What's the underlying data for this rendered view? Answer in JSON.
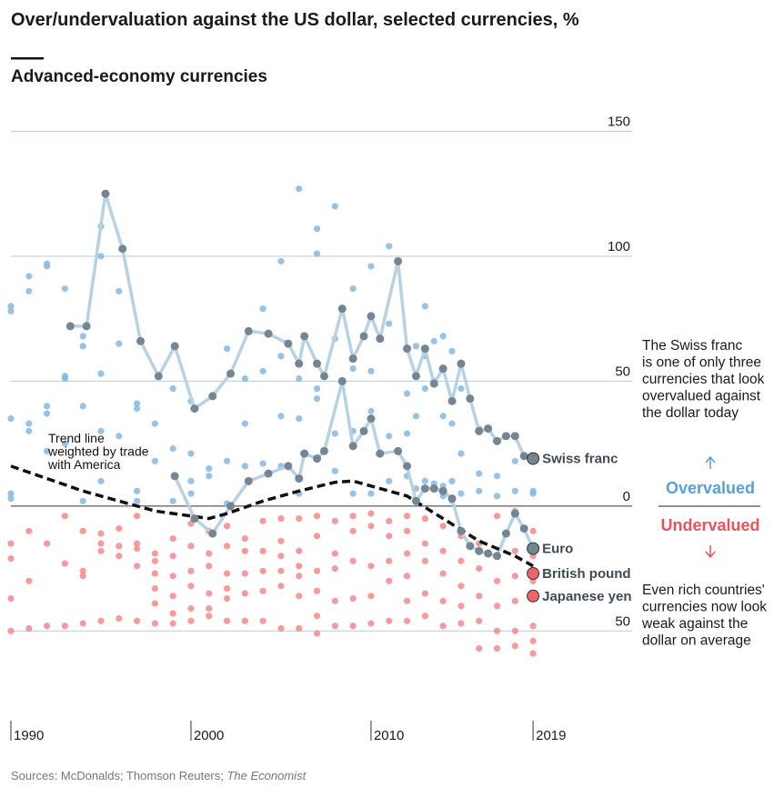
{
  "chart_data": {
    "type": "scatter-line",
    "title": "Over/undervaluation against the US dollar, selected currencies, %",
    "subtitle": "Advanced-economy currencies",
    "source": [
      "Sources: McDonalds; Thomson Reuters; ",
      "The Economist"
    ],
    "xlim": [
      1990,
      2024.5
    ],
    "xticks": [
      1990,
      2000,
      2010,
      2019
    ],
    "ylim": [
      -75,
      150
    ],
    "yticks": [
      150,
      100,
      50,
      0,
      {
        "value": -50,
        "label": "50"
      }
    ],
    "grid": true,
    "over_color": "#86b9e0",
    "under_color": "#f4898c",
    "trend": {
      "label": [
        "Trend line",
        "weighted by trade",
        "with America"
      ],
      "color": "#111111",
      "x": [
        1990,
        1992,
        1994,
        1996,
        1998,
        2000,
        2001,
        2002,
        2004,
        2006,
        2008,
        2009,
        2010,
        2012,
        2014,
        2016,
        2018,
        2019
      ],
      "values": [
        16,
        11,
        6,
        2,
        -2,
        -4,
        -5,
        -3,
        2,
        6,
        9.5,
        10,
        8,
        4,
        -5,
        -14,
        -20,
        -24
      ]
    },
    "series": [
      {
        "name": "Swiss franc",
        "color": "#758592",
        "line_color": "#b7d3e3",
        "x": [
          1993.3,
          1994.2,
          1995.25,
          1996.2,
          1997.2,
          1998.2,
          1999.1,
          2000.2,
          2001.2,
          2002.2,
          2003.2,
          2004.3,
          2005.4,
          2006,
          2006.3,
          2007,
          2007.4,
          2008.4,
          2009,
          2009.6,
          2010,
          2010.5,
          2011.5,
          2012,
          2012.5,
          2013,
          2013.5,
          2014,
          2014.5,
          2015,
          2015.5,
          2016,
          2016.5,
          2017,
          2017.5,
          2018,
          2018.5,
          2019
        ],
        "values": [
          72,
          72,
          125,
          103,
          66,
          52,
          64,
          39,
          44,
          53,
          70,
          69,
          65,
          57,
          68,
          57,
          52,
          79,
          59,
          68,
          76,
          67,
          98,
          63,
          52,
          63,
          49,
          55,
          42,
          57,
          43,
          30,
          31,
          26,
          28,
          28,
          20,
          19
        ]
      },
      {
        "name": "Euro",
        "color": "#758592",
        "line_color": "#b7d3e3",
        "x": [
          1999.1,
          2000.2,
          2001.2,
          2002.2,
          2003.2,
          2004.3,
          2005.4,
          2006,
          2006.3,
          2007,
          2007.4,
          2008.4,
          2009,
          2009.6,
          2010,
          2010.5,
          2011.5,
          2012,
          2012.5,
          2013,
          2013.5,
          2014,
          2014.5,
          2015,
          2015.5,
          2016,
          2016.5,
          2017,
          2017.5,
          2018,
          2018.5,
          2019
        ],
        "values": [
          12,
          -5,
          -11,
          0,
          10,
          13,
          16,
          11,
          21,
          19,
          22,
          50,
          24,
          30,
          35,
          21,
          22,
          16,
          2,
          7,
          7,
          6,
          3,
          -10,
          -16,
          -18,
          -19,
          -20,
          -11,
          -3,
          -9,
          -17
        ]
      },
      {
        "name": "British pound",
        "color": "#f0636a",
        "x": [
          2019
        ],
        "values": [
          -27
        ]
      },
      {
        "name": "Japanese yen",
        "color": "#f0636a",
        "x": [
          2019
        ],
        "values": [
          -36
        ]
      }
    ],
    "other_points": [
      {
        "x": 1990,
        "values": [
          80,
          78,
          35,
          5,
          3,
          -15,
          -21,
          -37,
          -50
        ]
      },
      {
        "x": 1991,
        "values": [
          92,
          86,
          33,
          30,
          -10,
          -30,
          -49
        ]
      },
      {
        "x": 1992,
        "values": [
          97,
          96,
          40,
          37,
          22,
          -15,
          -48
        ]
      },
      {
        "x": 1993,
        "values": [
          87,
          52,
          51,
          25,
          -4,
          -23,
          -48
        ]
      },
      {
        "x": 1994,
        "values": [
          68,
          64,
          40,
          2,
          -10,
          -26,
          -28,
          -47
        ]
      },
      {
        "x": 1995,
        "values": [
          112,
          100,
          53,
          30,
          10,
          -11,
          -15,
          -18,
          -46
        ]
      },
      {
        "x": 1996,
        "values": [
          86,
          65,
          28,
          -9,
          -16,
          -20,
          -45
        ]
      },
      {
        "x": 1997,
        "values": [
          41,
          39,
          6,
          2,
          -4,
          -15,
          -17,
          -24,
          -46
        ]
      },
      {
        "x": 1998,
        "values": [
          33,
          18,
          -19,
          -22,
          -27,
          -33,
          -39,
          -47
        ]
      },
      {
        "x": 1999,
        "values": [
          47,
          23,
          2,
          -13,
          -20,
          -28,
          -36,
          -43,
          -47
        ]
      },
      {
        "x": 2000,
        "values": [
          42,
          21,
          10,
          5,
          -7,
          -16,
          -26,
          -32,
          -41,
          -46
        ]
      },
      {
        "x": 2001,
        "values": [
          15,
          12,
          -10,
          -19,
          -24,
          -35,
          -41,
          -44
        ]
      },
      {
        "x": 2002,
        "values": [
          63,
          18,
          1,
          -8,
          -16,
          -27,
          -33,
          -37,
          -46
        ]
      },
      {
        "x": 2003,
        "values": [
          51,
          33,
          16,
          -13,
          -18,
          -27,
          -35,
          -46
        ]
      },
      {
        "x": 2004,
        "values": [
          79,
          54,
          17,
          -6,
          -18,
          -26,
          -34,
          -46
        ]
      },
      {
        "x": 2005,
        "values": [
          98,
          60,
          36,
          16,
          -5,
          -14,
          -20,
          -26,
          -32,
          -49
        ]
      },
      {
        "x": 2006,
        "values": [
          127,
          51,
          35,
          5,
          -5,
          -18,
          -24,
          -28,
          -36,
          -49
        ]
      },
      {
        "x": 2007,
        "values": [
          111,
          101,
          47,
          43,
          -4,
          -12,
          -26,
          -34,
          -44,
          -51
        ]
      },
      {
        "x": 2008,
        "values": [
          120,
          67,
          29,
          14,
          -6,
          -19,
          -25,
          -38,
          -48
        ]
      },
      {
        "x": 2009,
        "values": [
          87,
          55,
          30,
          5,
          -4,
          -10,
          -22,
          -37,
          -48
        ]
      },
      {
        "x": 2010,
        "values": [
          96,
          54,
          38,
          5,
          -3,
          -8,
          -24,
          -36,
          -47
        ]
      },
      {
        "x": 2011,
        "values": [
          104,
          73,
          28,
          10,
          -6,
          -12,
          -22,
          -30,
          -46
        ]
      },
      {
        "x": 2012,
        "values": [
          45,
          29,
          12,
          -4,
          -10,
          -19,
          -28,
          -38,
          -46
        ]
      },
      {
        "x": 2012.5,
        "values": [
          64,
          36,
          7
        ]
      },
      {
        "x": 2013,
        "values": [
          80,
          60,
          47,
          10,
          -5,
          -15,
          -22,
          -35,
          -44
        ]
      },
      {
        "x": 2013.5,
        "values": [
          66,
          50,
          9
        ]
      },
      {
        "x": 2014,
        "values": [
          68,
          36,
          8,
          4,
          -8,
          -18,
          -27,
          -38,
          -48
        ]
      },
      {
        "x": 2014.5,
        "values": [
          62,
          33,
          10,
          2
        ]
      },
      {
        "x": 2015,
        "values": [
          47,
          21,
          5,
          -12,
          -22,
          -32,
          -40,
          -47
        ]
      },
      {
        "x": 2016,
        "values": [
          31,
          13,
          6,
          -15,
          -25,
          -36,
          -46,
          -57
        ]
      },
      {
        "x": 2017,
        "values": [
          12,
          4,
          -4,
          -20,
          -30,
          -40,
          -50,
          -57
        ]
      },
      {
        "x": 2018,
        "values": [
          18,
          6,
          -2,
          -18,
          -28,
          -38,
          -50,
          -56
        ]
      },
      {
        "x": 2019,
        "values": [
          6,
          5,
          -10,
          -20,
          -30,
          -48,
          -54,
          -59
        ]
      }
    ],
    "note_top": [
      "The Swiss franc",
      "is one of only three",
      "currencies that look",
      "overvalued against",
      "the dollar today"
    ],
    "overvalued": "Overvalued",
    "undervalued": "Undervalued",
    "note_bottom": [
      "Even rich countries'",
      "currencies now look",
      "weak against the",
      "dollar on average"
    ]
  }
}
